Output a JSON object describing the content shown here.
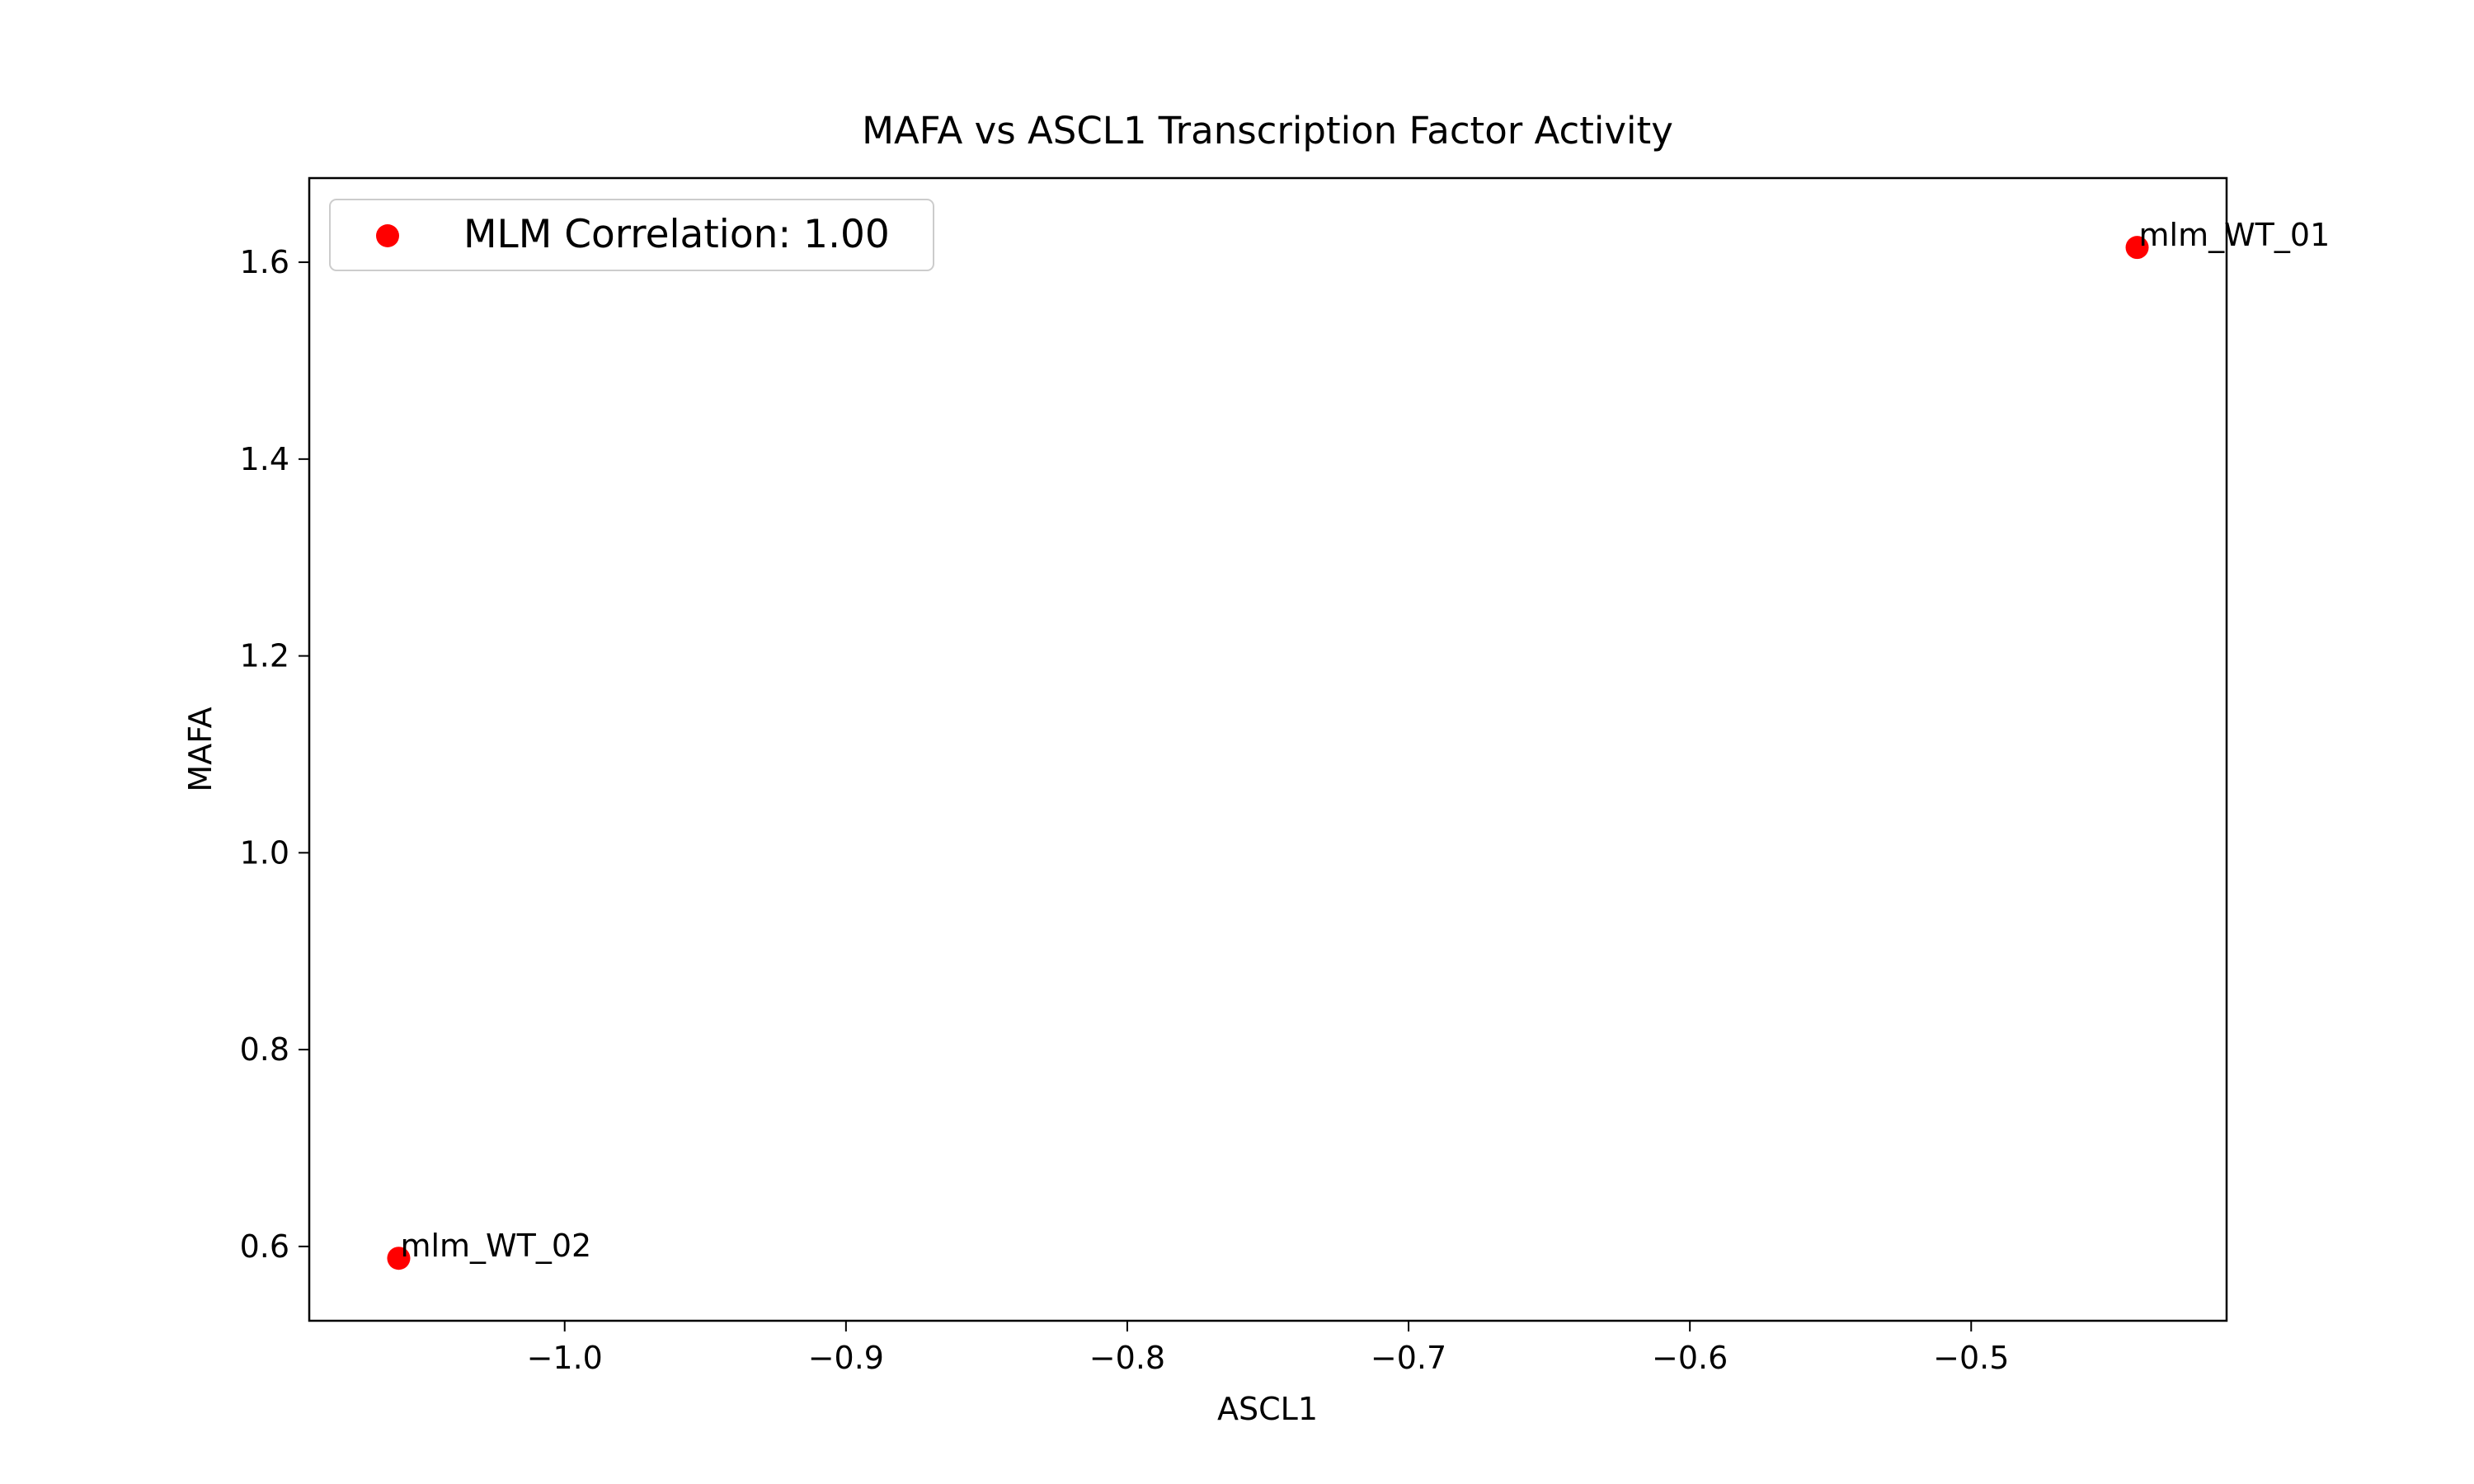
{
  "chart_data": {
    "type": "scatter",
    "title": "MAFA vs ASCL1 Transcription Factor Activity",
    "xlabel": "ASCL1",
    "ylabel": "MAFA",
    "xlim": [
      -1.0908,
      -0.4092
    ],
    "ylim": [
      0.5245,
      1.6855
    ],
    "xticks": [
      -1.0,
      -0.9,
      -0.8,
      -0.7,
      -0.6,
      -0.5
    ],
    "xtick_labels": [
      "−1.0",
      "−0.9",
      "−0.8",
      "−0.7",
      "−0.6",
      "−0.5"
    ],
    "yticks": [
      0.6,
      0.8,
      1.0,
      1.2,
      1.4,
      1.6
    ],
    "ytick_labels": [
      "0.6",
      "0.8",
      "1.0",
      "1.2",
      "1.4",
      "1.6"
    ],
    "grid": false,
    "legend": {
      "position": "upper-left",
      "entries": [
        "MLM Correlation: 1.00"
      ]
    },
    "series": [
      {
        "name": "MLM Correlation: 1.00",
        "color": "#ff0000",
        "points": [
          {
            "x": -0.441,
            "y": 1.615,
            "label": "mlm_WT_01"
          },
          {
            "x": -1.059,
            "y": 0.588,
            "label": "mlm_WT_02"
          }
        ]
      }
    ]
  }
}
